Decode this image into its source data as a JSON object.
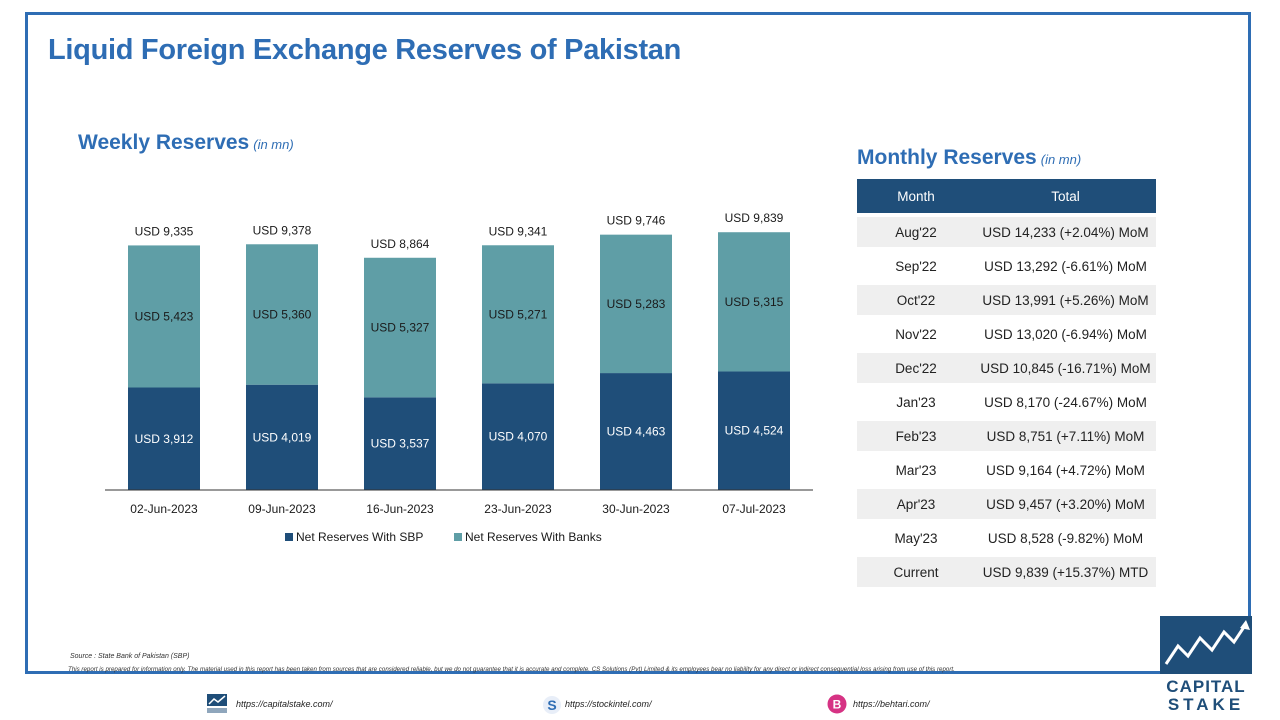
{
  "page": {
    "title": "Liquid Foreign Exchange Reserves of Pakistan"
  },
  "weekly": {
    "title": "Weekly Reserves",
    "unit": "(in mn)"
  },
  "monthly": {
    "title": "Monthly Reserves",
    "unit": "(in mn)",
    "headers": [
      "Month",
      "Total"
    ],
    "rows": [
      {
        "month": "Aug'22",
        "total": "USD 14,233 (+2.04%) MoM"
      },
      {
        "month": "Sep'22",
        "total": "USD 13,292 (-6.61%) MoM"
      },
      {
        "month": "Oct'22",
        "total": "USD 13,991 (+5.26%) MoM"
      },
      {
        "month": "Nov'22",
        "total": "USD 13,020 (-6.94%) MoM"
      },
      {
        "month": "Dec'22",
        "total": "USD 10,845 (-16.71%) MoM"
      },
      {
        "month": "Jan'23",
        "total": "USD 8,170 (-24.67%) MoM"
      },
      {
        "month": "Feb'23",
        "total": "USD 8,751 (+7.11%) MoM"
      },
      {
        "month": "Mar'23",
        "total": "USD 9,164 (+4.72%) MoM"
      },
      {
        "month": "Apr'23",
        "total": "USD 9,457 (+3.20%) MoM"
      },
      {
        "month": "May'23",
        "total": "USD 8,528 (-9.82%) MoM"
      },
      {
        "month": "Current",
        "total": "USD 9,839 (+15.37%) MTD"
      }
    ]
  },
  "chart_data": {
    "type": "bar",
    "stacked": true,
    "categories": [
      "02-Jun-2023",
      "09-Jun-2023",
      "16-Jun-2023",
      "23-Jun-2023",
      "30-Jun-2023",
      "07-Jul-2023"
    ],
    "series": [
      {
        "name": "Net Reserves With SBP",
        "values": [
          3912,
          4019,
          3537,
          4070,
          4463,
          4524
        ],
        "color": "#1f4e79"
      },
      {
        "name": "Net Reserves With Banks",
        "values": [
          5423,
          5360,
          5327,
          5271,
          5283,
          5315
        ],
        "color": "#5f9ea6"
      }
    ],
    "totals": [
      9335,
      9378,
      8864,
      9341,
      9746,
      9839
    ],
    "value_prefix": "USD ",
    "ylim": [
      0,
      10000
    ],
    "legend_position": "bottom",
    "grid": false
  },
  "footer": {
    "source": "Source : State Bank of Pakistan (SBP)",
    "disclaimer": "This report is prepared for information only. The material used in this report has been taken from sources that are considered reliable, but we do not guarantee that it is accurate and complete. CS Solutions (Pvt) Limited & its employees bear no liability for any direct or indirect consequential loss arising from use of this report.",
    "links": [
      "https://capitalstake.com/",
      "https://stockintel.com/",
      "https://behtari.com/"
    ],
    "logo_text": [
      "CAPITAL",
      "STAKE"
    ]
  },
  "colors": {
    "accent": "#2e6db4",
    "header_bg": "#1f4e79",
    "sbp": "#1f4e79",
    "banks": "#5f9ea6"
  }
}
